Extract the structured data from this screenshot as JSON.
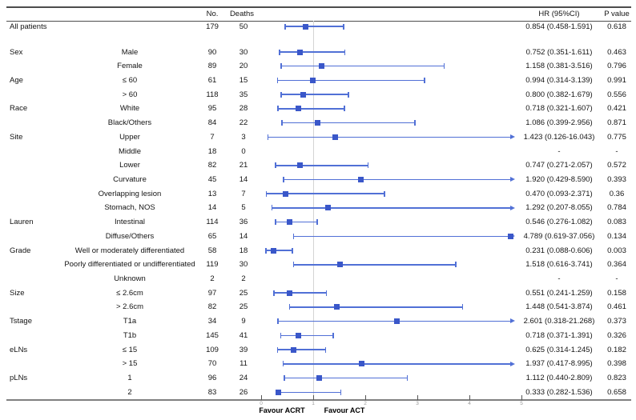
{
  "chart_data": {
    "type": "forest",
    "columns": {
      "no": "No.",
      "deaths": "Deaths",
      "hr": "HR (95%CI)",
      "p": "P value"
    },
    "axis": {
      "min": 0,
      "max": 5,
      "ticks": [
        0,
        1,
        2,
        3,
        4,
        5
      ],
      "ref_line": 1,
      "left_label": "Favour ACRT",
      "right_label": "Favour ACT"
    },
    "rows": [
      {
        "group": "All patients",
        "label": "",
        "no": "179",
        "deaths": "50",
        "hr": 0.854,
        "lo": 0.458,
        "hi": 1.591,
        "hr_text": "0.854 (0.458-1.591)",
        "p": "0.618",
        "gap_after": true
      },
      {
        "group": "Sex",
        "label": "Male",
        "no": "90",
        "deaths": "30",
        "hr": 0.752,
        "lo": 0.351,
        "hi": 1.611,
        "hr_text": "0.752 (0.351-1.611)",
        "p": "0.463"
      },
      {
        "group": "",
        "label": "Female",
        "no": "89",
        "deaths": "20",
        "hr": 1.158,
        "lo": 0.381,
        "hi": 3.516,
        "hr_text": "1.158 (0.381-3.516)",
        "p": "0.796"
      },
      {
        "group": "Age",
        "label": "≤ 60",
        "no": "61",
        "deaths": "15",
        "hr": 0.994,
        "lo": 0.314,
        "hi": 3.139,
        "hr_text": "0.994 (0.314-3.139)",
        "p": "0.991"
      },
      {
        "group": "",
        "label": "> 60",
        "no": "118",
        "deaths": "35",
        "hr": 0.8,
        "lo": 0.382,
        "hi": 1.679,
        "hr_text": "0.800 (0.382-1.679)",
        "p": "0.556"
      },
      {
        "group": "Race",
        "label": "White",
        "no": "95",
        "deaths": "28",
        "hr": 0.718,
        "lo": 0.321,
        "hi": 1.607,
        "hr_text": "0.718 (0.321-1.607)",
        "p": "0.421"
      },
      {
        "group": "",
        "label": "Black/Others",
        "no": "84",
        "deaths": "22",
        "hr": 1.086,
        "lo": 0.399,
        "hi": 2.956,
        "hr_text": "1.086 (0.399-2.956)",
        "p": "0.871"
      },
      {
        "group": "Site",
        "label": "Upper",
        "no": "7",
        "deaths": "3",
        "hr": 1.423,
        "lo": 0.126,
        "hi": 16.043,
        "hr_text": "1.423 (0.126-16.043)",
        "p": "0.775"
      },
      {
        "group": "",
        "label": "Middle",
        "no": "18",
        "deaths": "0",
        "hr": null,
        "lo": null,
        "hi": null,
        "hr_text": "-",
        "p": "-"
      },
      {
        "group": "",
        "label": "Lower",
        "no": "82",
        "deaths": "21",
        "hr": 0.747,
        "lo": 0.271,
        "hi": 2.057,
        "hr_text": "0.747 (0.271-2.057)",
        "p": "0.572"
      },
      {
        "group": "",
        "label": "Curvature",
        "no": "45",
        "deaths": "14",
        "hr": 1.92,
        "lo": 0.429,
        "hi": 8.59,
        "hr_text": "1.920 (0.429-8.590)",
        "p": "0.393"
      },
      {
        "group": "",
        "label": "Overlapping lesion",
        "no": "13",
        "deaths": "7",
        "hr": 0.47,
        "lo": 0.093,
        "hi": 2.371,
        "hr_text": "0.470 (0.093-2.371)",
        "p": "0.36"
      },
      {
        "group": "",
        "label": "Stomach, NOS",
        "no": "14",
        "deaths": "5",
        "hr": 1.292,
        "lo": 0.207,
        "hi": 8.055,
        "hr_text": "1.292 (0.207-8.055)",
        "p": "0.784"
      },
      {
        "group": "Lauren",
        "label": "Intestinal",
        "no": "114",
        "deaths": "36",
        "hr": 0.546,
        "lo": 0.276,
        "hi": 1.082,
        "hr_text": "0.546 (0.276-1.082)",
        "p": "0.083"
      },
      {
        "group": "",
        "label": "Diffuse/Others",
        "no": "65",
        "deaths": "14",
        "hr": 4.789,
        "lo": 0.619,
        "hi": 37.056,
        "hr_text": "4.789 (0.619-37.056)",
        "p": "0.134"
      },
      {
        "group": "Grade",
        "label": "Well or moderately differentiated",
        "no": "58",
        "deaths": "18",
        "hr": 0.231,
        "lo": 0.088,
        "hi": 0.606,
        "hr_text": "0.231 (0.088-0.606)",
        "p": "0.003"
      },
      {
        "group": "",
        "label": "Poorly differentiated or undifferentiated",
        "no": "119",
        "deaths": "30",
        "hr": 1.518,
        "lo": 0.616,
        "hi": 3.741,
        "hr_text": "1.518 (0.616-3.741)",
        "p": "0.364"
      },
      {
        "group": "",
        "label": "Unknown",
        "no": "2",
        "deaths": "2",
        "hr": null,
        "lo": null,
        "hi": null,
        "hr_text": "-",
        "p": "-"
      },
      {
        "group": "Size",
        "label": "≤ 2.6cm",
        "no": "97",
        "deaths": "25",
        "hr": 0.551,
        "lo": 0.241,
        "hi": 1.259,
        "hr_text": "0.551 (0.241-1.259)",
        "p": "0.158"
      },
      {
        "group": "",
        "label": "> 2.6cm",
        "no": "82",
        "deaths": "25",
        "hr": 1.448,
        "lo": 0.541,
        "hi": 3.874,
        "hr_text": "1.448 (0.541-3.874)",
        "p": "0.461"
      },
      {
        "group": "Tstage",
        "label": "T1a",
        "no": "34",
        "deaths": "9",
        "hr": 2.601,
        "lo": 0.318,
        "hi": 21.268,
        "hr_text": "2.601 (0.318-21.268)",
        "p": "0.373"
      },
      {
        "group": "",
        "label": "T1b",
        "no": "145",
        "deaths": "41",
        "hr": 0.718,
        "lo": 0.371,
        "hi": 1.391,
        "hr_text": "0.718 (0.371-1.391)",
        "p": "0.326"
      },
      {
        "group": "eLNs",
        "label": "≤ 15",
        "no": "109",
        "deaths": "39",
        "hr": 0.625,
        "lo": 0.314,
        "hi": 1.245,
        "hr_text": "0.625 (0.314-1.245)",
        "p": "0.182"
      },
      {
        "group": "",
        "label": "> 15",
        "no": "70",
        "deaths": "11",
        "hr": 1.937,
        "lo": 0.417,
        "hi": 8.995,
        "hr_text": "1.937 (0.417-8.995)",
        "p": "0.398"
      },
      {
        "group": "pLNs",
        "label": "1",
        "no": "96",
        "deaths": "24",
        "hr": 1.112,
        "lo": 0.44,
        "hi": 2.809,
        "hr_text": "1.112 (0.440-2.809)",
        "p": "0.823"
      },
      {
        "group": "",
        "label": "2",
        "no": "83",
        "deaths": "26",
        "hr": 0.333,
        "lo": 0.282,
        "hi": 1.536,
        "hr_text": "0.333 (0.282-1.536)",
        "p": "0.658"
      }
    ]
  },
  "colors": {
    "marker": "#3a57c9",
    "ci_line": "#5170d6",
    "ref_line": "#d4d4d4",
    "rule": "#4d4d4d"
  }
}
